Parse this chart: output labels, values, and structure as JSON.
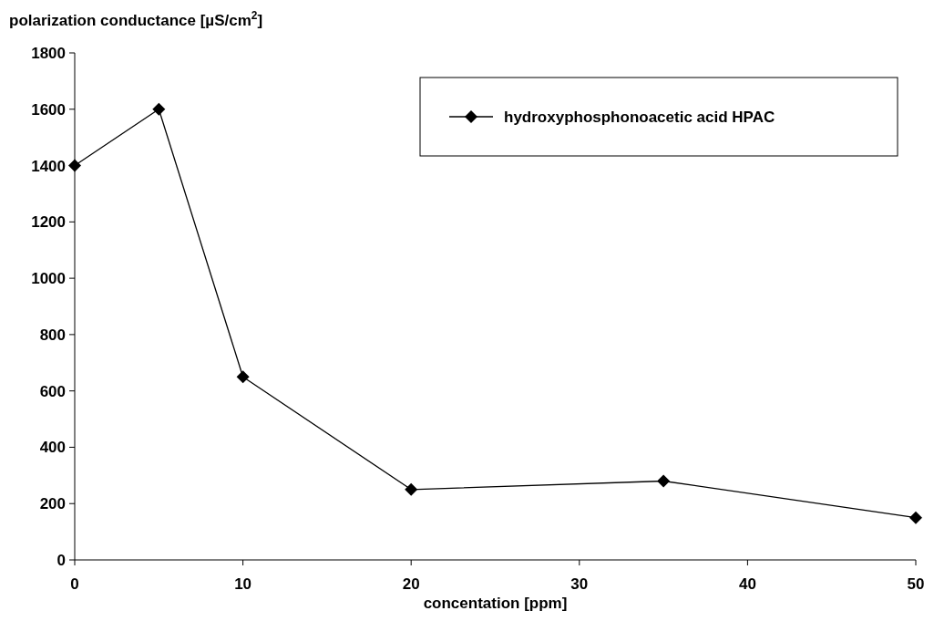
{
  "chart_data": {
    "type": "line",
    "title": "polarization conductance [µS/cm$^{2}$]",
    "xlabel": "concentation [ppm]",
    "x": [
      0,
      5,
      10,
      20,
      35,
      50
    ],
    "series": [
      {
        "name": "hydroxyphosphonoacetic acid HPAC",
        "color": "#000000",
        "values": [
          1400,
          1600,
          650,
          250,
          280,
          150
        ]
      }
    ],
    "xlim": [
      0,
      50
    ],
    "xticks": [
      0,
      10,
      20,
      30,
      40,
      50
    ],
    "ylim": [
      0,
      1800
    ],
    "yticks": [
      0,
      200,
      400,
      600,
      800,
      1000,
      1200,
      1400,
      1600,
      1800
    ],
    "marker": "diamond",
    "line_style": "solid",
    "legend": "top right",
    "grid": false
  }
}
